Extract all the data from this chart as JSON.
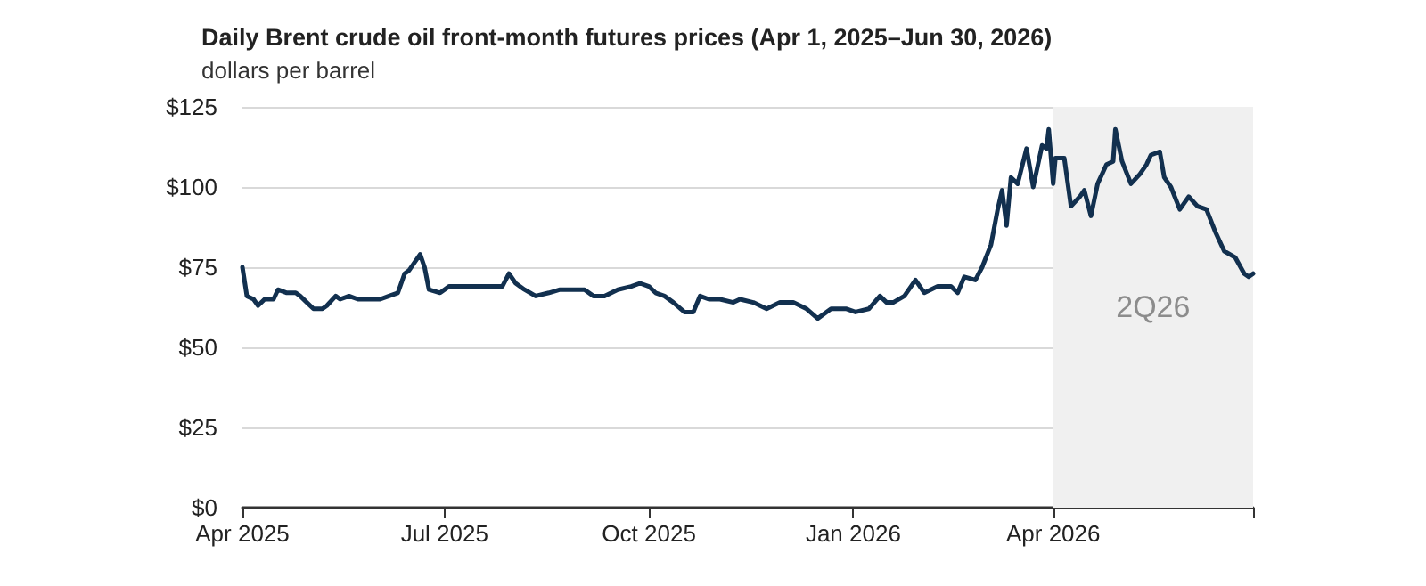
{
  "chart_data": {
    "type": "line",
    "title": "Daily Brent crude oil front-month futures prices (Apr 1, 2025–Jun 30, 2026)",
    "subtitle": "dollars per barrel",
    "x": [
      "2025-04-01",
      "2025-04-03",
      "2025-04-06",
      "2025-04-08",
      "2025-04-11",
      "2025-04-15",
      "2025-04-17",
      "2025-04-21",
      "2025-04-25",
      "2025-04-27",
      "2025-04-30",
      "2025-05-03",
      "2025-05-07",
      "2025-05-09",
      "2025-05-13",
      "2025-05-15",
      "2025-05-19",
      "2025-05-23",
      "2025-05-28",
      "2025-06-02",
      "2025-06-06",
      "2025-06-10",
      "2025-06-13",
      "2025-06-15",
      "2025-06-17",
      "2025-06-20",
      "2025-06-22",
      "2025-06-24",
      "2025-06-29",
      "2025-07-03",
      "2025-07-07",
      "2025-07-13",
      "2025-07-18",
      "2025-07-23",
      "2025-07-27",
      "2025-07-30",
      "2025-08-02",
      "2025-08-06",
      "2025-08-11",
      "2025-08-17",
      "2025-08-22",
      "2025-08-27",
      "2025-09-02",
      "2025-09-06",
      "2025-09-11",
      "2025-09-17",
      "2025-09-23",
      "2025-09-27",
      "2025-10-01",
      "2025-10-04",
      "2025-10-08",
      "2025-10-12",
      "2025-10-17",
      "2025-10-21",
      "2025-10-24",
      "2025-10-28",
      "2025-11-02",
      "2025-11-08",
      "2025-11-11",
      "2025-11-17",
      "2025-11-23",
      "2025-11-29",
      "2025-12-05",
      "2025-12-11",
      "2025-12-16",
      "2025-12-22",
      "2025-12-29",
      "2026-01-02",
      "2026-01-08",
      "2026-01-13",
      "2026-01-16",
      "2026-01-19",
      "2026-01-24",
      "2026-01-29",
      "2026-02-02",
      "2026-02-08",
      "2026-02-14",
      "2026-02-17",
      "2026-02-20",
      "2026-02-25",
      "2026-02-28",
      "2026-03-04",
      "2026-03-07",
      "2026-03-09",
      "2026-03-11",
      "2026-03-13",
      "2026-03-16",
      "2026-03-20",
      "2026-03-23",
      "2026-03-27",
      "2026-03-29",
      "2026-03-30",
      "2026-04-01",
      "2026-04-02",
      "2026-04-06",
      "2026-04-09",
      "2026-04-13",
      "2026-04-15",
      "2026-04-18",
      "2026-04-21",
      "2026-04-25",
      "2026-04-28",
      "2026-04-29",
      "2026-05-02",
      "2026-05-06",
      "2026-05-10",
      "2026-05-13",
      "2026-05-15",
      "2026-05-19",
      "2026-05-21",
      "2026-05-24",
      "2026-05-28",
      "2026-06-01",
      "2026-06-05",
      "2026-06-09",
      "2026-06-13",
      "2026-06-17",
      "2026-06-22",
      "2026-06-26",
      "2026-06-28",
      "2026-06-30"
    ],
    "series": [
      {
        "color": "#12304f",
        "values": [
          75,
          66,
          65,
          63,
          65,
          65,
          68,
          67,
          67,
          66,
          64,
          62,
          62,
          63,
          66,
          65,
          66,
          65,
          65,
          65,
          66,
          67,
          73,
          74,
          76,
          79,
          75,
          68,
          67,
          69,
          69,
          69,
          69,
          69,
          69,
          73,
          70,
          68,
          66,
          67,
          68,
          68,
          68,
          66,
          66,
          68,
          69,
          70,
          69,
          67,
          66,
          64,
          61,
          61,
          66,
          65,
          65,
          64,
          65,
          64,
          62,
          64,
          64,
          62,
          59,
          62,
          62,
          61,
          62,
          66,
          64,
          64,
          66,
          71,
          67,
          69,
          69,
          67,
          72,
          71,
          75,
          82,
          93,
          99,
          88,
          103,
          101,
          112,
          100,
          113,
          112,
          118,
          101,
          109,
          109,
          94,
          97,
          99,
          91,
          101,
          107,
          108,
          118,
          108,
          101,
          104,
          107,
          110,
          111,
          103,
          100,
          93,
          97,
          94,
          93,
          86,
          80,
          78,
          73,
          72,
          73
        ]
      }
    ],
    "xlim": [
      "2025-04-01",
      "2026-06-30"
    ],
    "xticks": [
      {
        "value": "2025-04-01",
        "label": "Apr 2025"
      },
      {
        "value": "2025-07-01",
        "label": "Jul 2025"
      },
      {
        "value": "2025-10-01",
        "label": "Oct 2025"
      },
      {
        "value": "2026-01-01",
        "label": "Jan 2026"
      },
      {
        "value": "2026-04-01",
        "label": "Apr 2026"
      },
      {
        "value": "2026-06-30",
        "label": null
      }
    ],
    "ylim": [
      0,
      125
    ],
    "yticks": [
      {
        "value": 0,
        "label": "$0"
      },
      {
        "value": 25,
        "label": "$25"
      },
      {
        "value": 50,
        "label": "$50"
      },
      {
        "value": 75,
        "label": "$75"
      },
      {
        "value": 100,
        "label": "$100"
      },
      {
        "value": 125,
        "label": "$125"
      }
    ],
    "bands": [
      {
        "axis": "x",
        "from": "2026-04-01",
        "to": "2026-06-30",
        "label": "2Q26",
        "color": "#f0f0f0"
      }
    ],
    "grid": "y",
    "marker": "none",
    "line_style": "solid"
  }
}
